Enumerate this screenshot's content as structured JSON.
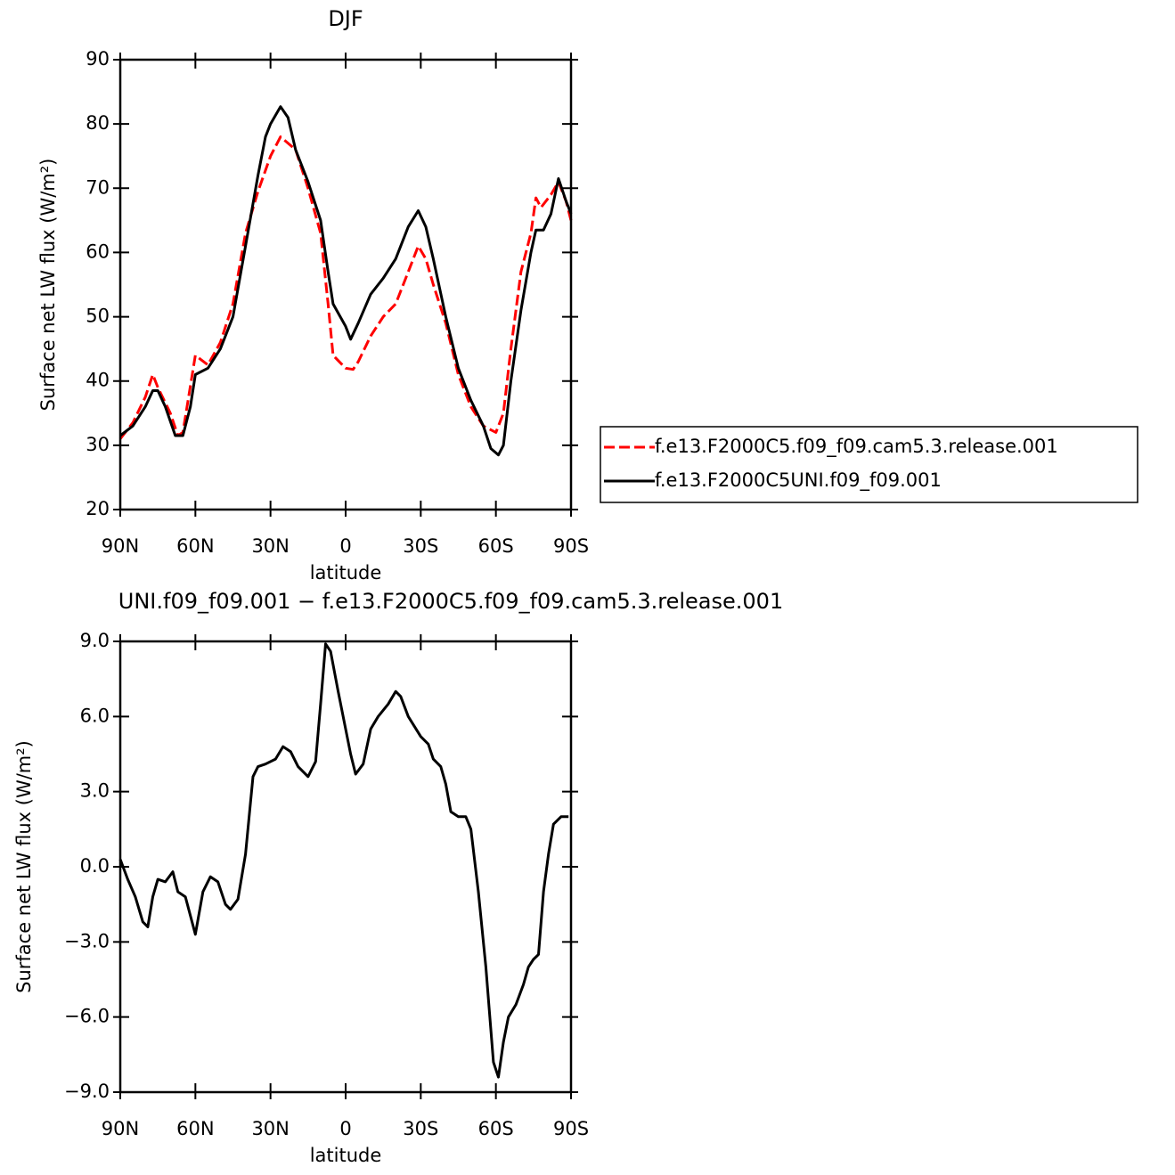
{
  "chart_data": [
    {
      "type": "line",
      "title": "DJF",
      "xlabel": "latitude",
      "ylabel": "Surface net LW flux (W/m²)",
      "xlim": [
        90,
        -90
      ],
      "xticks": [
        {
          "value": 90,
          "label": "90N"
        },
        {
          "value": 60,
          "label": "60N"
        },
        {
          "value": 30,
          "label": "30N"
        },
        0,
        {
          "value": -30,
          "label": "30S"
        },
        {
          "value": -60,
          "label": "60S"
        },
        {
          "value": -90,
          "label": "90S"
        }
      ],
      "ylim": [
        20,
        90
      ],
      "yticks": [
        20,
        30,
        40,
        50,
        60,
        70,
        80,
        90
      ],
      "legend": "right",
      "series": [
        {
          "name": "f.e13.F2000C5.f09_f09.cam5.3.release.001",
          "color": "#ff0000",
          "line_style": "dashed",
          "x": [
            90,
            85,
            80,
            77,
            75,
            70,
            67,
            65,
            60,
            55,
            50,
            45,
            40,
            35,
            30,
            26,
            20,
            15,
            10,
            7,
            5,
            0,
            -3,
            -5,
            -10,
            -15,
            -20,
            -25,
            -29,
            -32,
            -35,
            -40,
            -45,
            -50,
            -55,
            -60,
            -63,
            -66,
            -70,
            -74,
            -76,
            -78,
            -82,
            -85,
            -88,
            -90
          ],
          "values": [
            31,
            33.5,
            37.5,
            41,
            39,
            35,
            31.5,
            32,
            44,
            42.5,
            46,
            52,
            63,
            69.5,
            75,
            78,
            76,
            70,
            63,
            52,
            44,
            42,
            41.8,
            43,
            47,
            50,
            52,
            57,
            61,
            59,
            55,
            49,
            41,
            36,
            33,
            32,
            35,
            45,
            57,
            63,
            68.5,
            67,
            69,
            71,
            68,
            65
          ]
        },
        {
          "name": "f.e13.F2000C5UNI.f09_f09.001",
          "color": "#000000",
          "line_style": "solid",
          "x": [
            90,
            85,
            80,
            77,
            75,
            72,
            68,
            65,
            62,
            60,
            55,
            50,
            45,
            40,
            35,
            32,
            30,
            26,
            23,
            20,
            15,
            10,
            7,
            5,
            0,
            -2,
            -5,
            -10,
            -15,
            -20,
            -25,
            -29,
            -32,
            -35,
            -40,
            -45,
            -50,
            -55,
            -58,
            -61,
            -63,
            -66,
            -70,
            -74,
            -76,
            -79,
            -82,
            -85,
            -88,
            -90
          ],
          "values": [
            31.5,
            33,
            36,
            38.5,
            38.5,
            36,
            31.5,
            31.5,
            36,
            41,
            42,
            45,
            50,
            61,
            72,
            78,
            80,
            82.7,
            81,
            76,
            71,
            65,
            57,
            52,
            48.5,
            46.5,
            49,
            53.5,
            56,
            59,
            64,
            66.5,
            64,
            59,
            50,
            42,
            37,
            33,
            29.5,
            28.5,
            30,
            40,
            51,
            60,
            63.5,
            63.5,
            66,
            71.5,
            68,
            66
          ]
        }
      ]
    },
    {
      "type": "line",
      "title": "UNI.f09_f09.001 − f.e13.F2000C5.f09_f09.cam5.3.release.001",
      "xlabel": "latitude",
      "ylabel": "Surface net LW flux (W/m²)",
      "xlim": [
        90,
        -90
      ],
      "xticks": [
        {
          "value": 90,
          "label": "90N"
        },
        {
          "value": 60,
          "label": "60N"
        },
        {
          "value": 30,
          "label": "30N"
        },
        0,
        {
          "value": -30,
          "label": "30S"
        },
        {
          "value": -60,
          "label": "60S"
        },
        {
          "value": -90,
          "label": "90S"
        }
      ],
      "ylim": [
        -9,
        9
      ],
      "yticks": [
        {
          "value": -9,
          "label": "−9.0"
        },
        {
          "value": -6,
          "label": "−6.0"
        },
        {
          "value": -3,
          "label": "−3.0"
        },
        {
          "value": 0,
          "label": "0.0"
        },
        {
          "value": 3,
          "label": "3.0"
        },
        {
          "value": 6,
          "label": "6.0"
        },
        {
          "value": 9,
          "label": "9.0"
        }
      ],
      "series": [
        {
          "color": "#000000",
          "line_style": "solid",
          "x": [
            90,
            87,
            84,
            81,
            79,
            77,
            75,
            72,
            69,
            67,
            64,
            60,
            57,
            54,
            51,
            48,
            46,
            43,
            40,
            37,
            35,
            32,
            28,
            25,
            22,
            19,
            15,
            12,
            10,
            8,
            6,
            3,
            1,
            -2,
            -4,
            -7,
            -10,
            -13,
            -17,
            -20,
            -22,
            -25,
            -30,
            -33,
            -35,
            -38,
            -40,
            -42,
            -45,
            -48,
            -50,
            -53,
            -56,
            -59,
            -61,
            -63,
            -65,
            -68,
            -71,
            -73,
            -75,
            -77,
            -79,
            -81,
            -83,
            -86,
            -89
          ],
          "values": [
            0.3,
            -0.5,
            -1.2,
            -2.2,
            -2.4,
            -1.2,
            -0.5,
            -0.6,
            -0.2,
            -1.0,
            -1.2,
            -2.7,
            -1.0,
            -0.4,
            -0.6,
            -1.5,
            -1.7,
            -1.3,
            0.5,
            3.6,
            4.0,
            4.1,
            4.3,
            4.8,
            4.6,
            4.0,
            3.6,
            4.2,
            6.5,
            8.9,
            8.6,
            7.0,
            6.0,
            4.5,
            3.7,
            4.1,
            5.5,
            6.0,
            6.5,
            7.0,
            6.8,
            6.0,
            5.2,
            4.9,
            4.3,
            4.0,
            3.3,
            2.2,
            2.0,
            2.0,
            1.5,
            -1.0,
            -4.0,
            -7.8,
            -8.4,
            -7.0,
            -6.0,
            -5.5,
            -4.7,
            -4.0,
            -3.7,
            -3.5,
            -1.0,
            0.5,
            1.7,
            2.0,
            2.0
          ]
        }
      ]
    }
  ]
}
